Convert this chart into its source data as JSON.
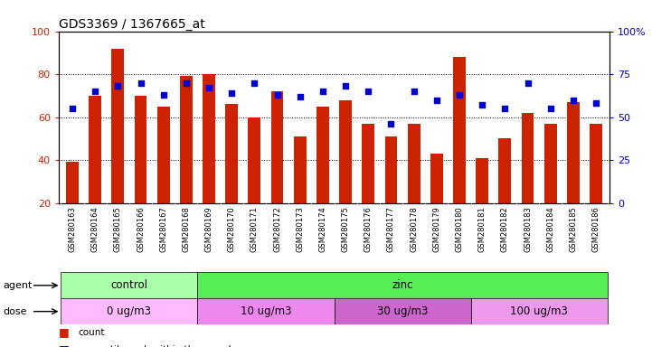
{
  "title": "GDS3369 / 1367665_at",
  "samples": [
    "GSM280163",
    "GSM280164",
    "GSM280165",
    "GSM280166",
    "GSM280167",
    "GSM280168",
    "GSM280169",
    "GSM280170",
    "GSM280171",
    "GSM280172",
    "GSM280173",
    "GSM280174",
    "GSM280175",
    "GSM280176",
    "GSM280177",
    "GSM280178",
    "GSM280179",
    "GSM280180",
    "GSM280181",
    "GSM280182",
    "GSM280183",
    "GSM280184",
    "GSM280185",
    "GSM280186"
  ],
  "bar_values": [
    39,
    70,
    92,
    70,
    65,
    79,
    80,
    66,
    60,
    72,
    51,
    65,
    68,
    57,
    51,
    57,
    43,
    88,
    41,
    50,
    62,
    57,
    67,
    57
  ],
  "dot_values_pct": [
    55,
    65,
    68,
    70,
    63,
    70,
    67,
    64,
    70,
    63,
    62,
    65,
    68,
    65,
    46,
    65,
    60,
    63,
    57,
    55,
    70,
    55,
    60,
    58
  ],
  "bar_color": "#CC2200",
  "dot_color": "#0000CC",
  "ylim_left": [
    20,
    100
  ],
  "ylim_right": [
    0,
    100
  ],
  "yticks_left": [
    20,
    40,
    60,
    80,
    100
  ],
  "yticks_right": [
    0,
    25,
    50,
    75,
    100
  ],
  "ytick_labels_right": [
    "0",
    "25",
    "50",
    "75",
    "100%"
  ],
  "agent_groups": [
    {
      "label": "control",
      "start": 0,
      "end": 6,
      "color": "#AAFFAA"
    },
    {
      "label": "zinc",
      "start": 6,
      "end": 24,
      "color": "#55EE55"
    }
  ],
  "dose_groups": [
    {
      "label": "0 ug/m3",
      "start": 0,
      "end": 6,
      "color": "#FFBBFF"
    },
    {
      "label": "10 ug/m3",
      "start": 6,
      "end": 12,
      "color": "#EE88EE"
    },
    {
      "label": "30 ug/m3",
      "start": 12,
      "end": 18,
      "color": "#CC66CC"
    },
    {
      "label": "100 ug/m3",
      "start": 18,
      "end": 24,
      "color": "#EE99EE"
    }
  ],
  "xtick_bg": "#D8D8D8",
  "agent_label_color": "black",
  "dose_label_color": "black",
  "legend_count_color": "#CC2200",
  "legend_dot_color": "#0000CC"
}
